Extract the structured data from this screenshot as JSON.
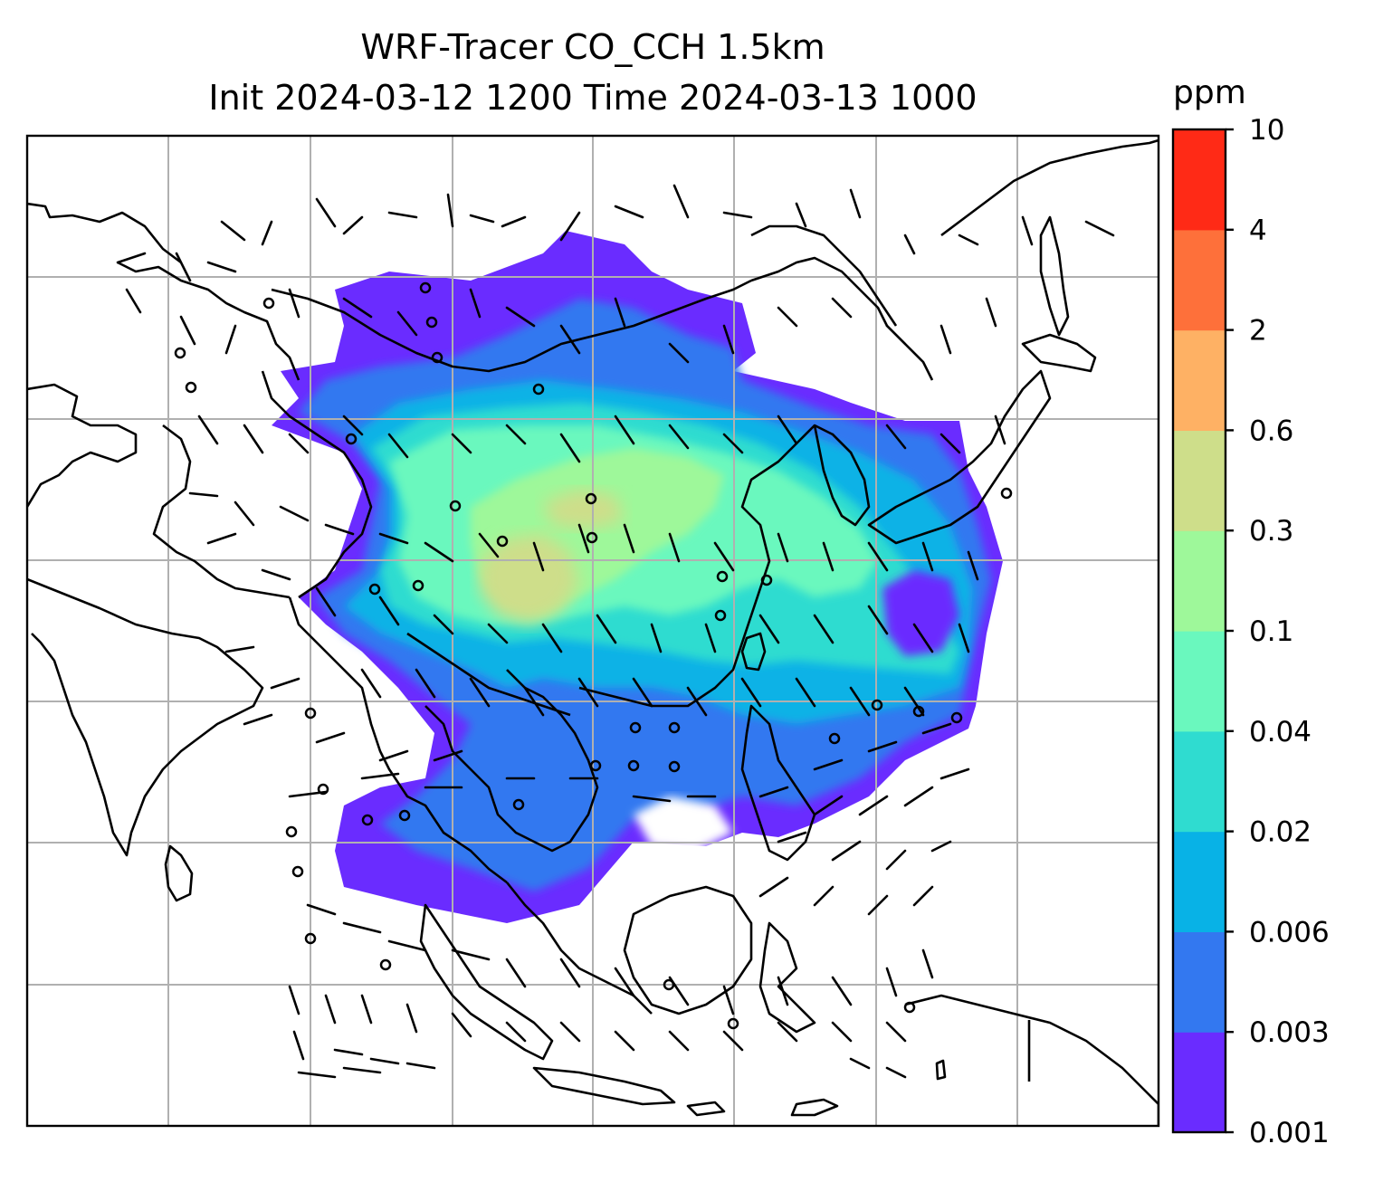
{
  "title_line1": "WRF-Tracer CO_CCH 1.5km",
  "title_line2": "Init 2024-03-12 1200 Time 2024-03-13 1000",
  "colorbar": {
    "unit": "ppm",
    "levels": [
      "0.001",
      "0.003",
      "0.006",
      "0.02",
      "0.04",
      "0.1",
      "0.3",
      "0.6",
      "2",
      "4",
      "10"
    ],
    "colors": [
      "#6a2cff",
      "#3378f0",
      "#08b2e6",
      "#2fdcd0",
      "#6af8be",
      "#9ef89a",
      "#cede8a",
      "#feb164",
      "#fe703a",
      "#ff2a16"
    ]
  },
  "map": {
    "field": "CO_CCH tracer concentration",
    "overlay": "wind barbs",
    "background": "#ffffff",
    "coastline_color": "#000000",
    "gridline_color": "#b0b0b0"
  }
}
